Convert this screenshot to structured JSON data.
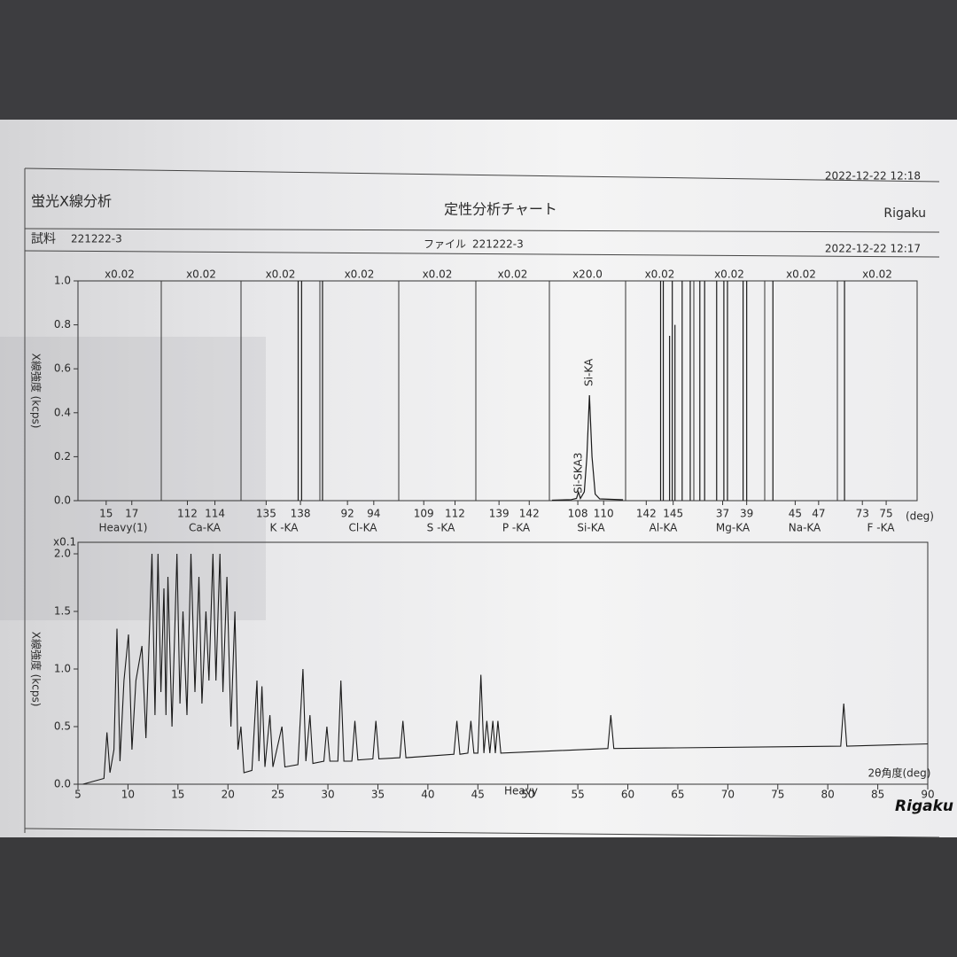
{
  "header": {
    "title": "蛍光X線分析",
    "subtitle": "定性分析チャート",
    "brand": "Rigaku",
    "printed": "2022-12-22 12:18",
    "sample_label": "試料",
    "sample": "221222-3",
    "file_label": "ファイル",
    "file": "221222-3",
    "measured": "2022-12-22 12:17",
    "logo": "Rigaku"
  },
  "chart_data": [
    {
      "type": "panels",
      "y_label": "X線強度 (kcps)",
      "x_unit": "(deg)",
      "color": "#1a1a1a",
      "ylim": [
        0,
        1
      ],
      "yticks": [
        {
          "value": 0,
          "label": "0.0"
        },
        0.2,
        0.4,
        0.6,
        0.8,
        {
          "value": 1,
          "label": "1.0"
        }
      ],
      "panels": [
        {
          "type": "stems",
          "scale": "x0.02",
          "name": "Heavy(1)",
          "xlim": [
            12.8,
            19.3
          ],
          "xticks": [
            15,
            17
          ]
        },
        {
          "type": "stems",
          "scale": "x0.02",
          "name": "Ca-KA",
          "xlim": [
            110.1,
            115.9
          ],
          "xticks": [
            112,
            114
          ]
        },
        {
          "type": "stems",
          "scale": "x0.02",
          "name": "K -KA",
          "xlim": [
            132.8,
            139.7
          ],
          "xticks": [
            135,
            138
          ],
          "x": [
            137.8,
            138.1
          ],
          "values": [
            1,
            1
          ]
        },
        {
          "type": "stems",
          "scale": "x0.02",
          "name": "Cl-KA",
          "xlim": [
            89.9,
            95.9
          ],
          "xticks": [
            92,
            94
          ],
          "x": [
            90.1
          ],
          "values": [
            1
          ]
        },
        {
          "type": "stems",
          "scale": "x0.02",
          "name": "S -KA",
          "xlim": [
            106.6,
            114.0
          ],
          "xticks": [
            109,
            112
          ]
        },
        {
          "type": "stems",
          "scale": "x0.02",
          "name": "P -KA",
          "xlim": [
            136.7,
            144.0
          ],
          "xticks": [
            139,
            142
          ]
        },
        {
          "type": "line",
          "scale": "x20.0",
          "name": "Si-KA",
          "xlim": [
            105.8,
            111.7
          ],
          "xticks": [
            108,
            110
          ],
          "x": [
            106.0,
            107.5,
            107.9,
            108.05,
            108.2,
            108.5,
            108.7,
            108.9,
            109.1,
            109.35,
            109.7,
            111.5
          ],
          "values": [
            0.002,
            0.005,
            0.01,
            0.04,
            0.01,
            0.04,
            0.2,
            0.48,
            0.2,
            0.03,
            0.008,
            0.004
          ],
          "annotations": [
            "Si-SKA3",
            "Si-KA"
          ]
        },
        {
          "type": "stems",
          "scale": "x0.02",
          "name": "Al-KA",
          "xlim": [
            139.7,
            147.3
          ],
          "xticks": [
            142,
            145
          ],
          "x": [
            143.6,
            143.9,
            144.6,
            144.9,
            145.2,
            146.0,
            146.9
          ],
          "values": [
            1,
            1,
            0.75,
            1,
            0.8,
            1,
            1
          ]
        },
        {
          "type": "stems",
          "scale": "x0.02",
          "name": "Mg-KA",
          "xlim": [
            34.6,
            40.5
          ],
          "xticks": [
            37,
            39
          ],
          "x": [
            35.1,
            35.5,
            36.5,
            37.1,
            37.4,
            38.7,
            39.0
          ],
          "values": [
            1,
            1,
            1,
            1,
            1,
            1,
            1
          ]
        },
        {
          "type": "stems",
          "scale": "x0.02",
          "name": "Na-KA",
          "xlim": [
            42.4,
            48.6
          ],
          "xticks": [
            45,
            47
          ],
          "x": [
            43.1
          ],
          "values": [
            1
          ]
        },
        {
          "type": "stems",
          "scale": "x0.02",
          "name": "F -KA",
          "xlim": [
            70.9,
            77.6
          ],
          "xticks": [
            73,
            75
          ],
          "x": [
            71.5
          ],
          "values": [
            1
          ]
        }
      ]
    },
    {
      "type": "line",
      "y_label": "X線強度 (kcps)",
      "y_scale_label": "x0.1",
      "x_label": "Heavy",
      "x_unit_label": "2θ角度(deg)",
      "color": "#1a1a1a",
      "xlim": [
        5,
        90
      ],
      "xticks": [
        5,
        10,
        15,
        20,
        25,
        30,
        35,
        40,
        45,
        50,
        55,
        60,
        65,
        70,
        75,
        80,
        85,
        90
      ],
      "ylim": [
        0,
        2
      ],
      "yticks": [
        {
          "value": 0,
          "label": "0.0"
        },
        0.5,
        {
          "value": 1,
          "label": "1.0"
        },
        1.5,
        {
          "value": 2,
          "label": "2.0"
        }
      ],
      "x": [
        5.5,
        7.6,
        7.9,
        8.2,
        8.6,
        8.9,
        9.2,
        9.6,
        10.05,
        10.4,
        10.8,
        11.4,
        11.8,
        12.4,
        12.7,
        13.0,
        13.3,
        13.6,
        13.8,
        14.0,
        14.4,
        14.9,
        15.2,
        15.5,
        15.9,
        16.3,
        16.7,
        17.1,
        17.4,
        17.8,
        18.1,
        18.5,
        18.8,
        19.2,
        19.5,
        19.9,
        20.3,
        20.7,
        21.0,
        21.3,
        21.6,
        22.4,
        22.9,
        23.1,
        23.4,
        23.7,
        24.2,
        24.5,
        25.4,
        25.7,
        27.0,
        27.5,
        27.8,
        28.2,
        28.5,
        29.6,
        29.9,
        30.2,
        31.0,
        31.3,
        31.6,
        32.4,
        32.7,
        33.0,
        34.5,
        34.8,
        35.1,
        37.2,
        37.5,
        37.8,
        42.6,
        42.9,
        43.2,
        44.0,
        44.3,
        44.6,
        45.0,
        45.3,
        45.6,
        45.9,
        46.2,
        46.5,
        46.75,
        47.0,
        47.3,
        58.0,
        58.3,
        58.6,
        81.3,
        81.6,
        81.9,
        90
      ],
      "values": [
        0,
        0.05,
        0.45,
        0.1,
        0.3,
        1.35,
        0.2,
        0.9,
        1.3,
        0.3,
        0.9,
        1.2,
        0.4,
        2.0,
        0.6,
        2.0,
        0.8,
        1.7,
        0.6,
        1.8,
        0.5,
        2.0,
        0.7,
        1.5,
        0.6,
        2.0,
        0.8,
        1.8,
        0.7,
        1.5,
        0.9,
        2.0,
        0.9,
        2.0,
        0.8,
        1.8,
        0.5,
        1.5,
        0.3,
        0.5,
        0.1,
        0.12,
        0.9,
        0.2,
        0.85,
        0.15,
        0.6,
        0.15,
        0.5,
        0.15,
        0.17,
        1.0,
        0.2,
        0.6,
        0.18,
        0.2,
        0.5,
        0.2,
        0.2,
        0.9,
        0.2,
        0.2,
        0.55,
        0.21,
        0.22,
        0.55,
        0.22,
        0.23,
        0.55,
        0.23,
        0.26,
        0.55,
        0.26,
        0.27,
        0.55,
        0.27,
        0.27,
        0.95,
        0.27,
        0.55,
        0.27,
        0.55,
        0.27,
        0.55,
        0.27,
        0.31,
        0.6,
        0.31,
        0.33,
        0.7,
        0.33,
        0.35
      ]
    }
  ]
}
